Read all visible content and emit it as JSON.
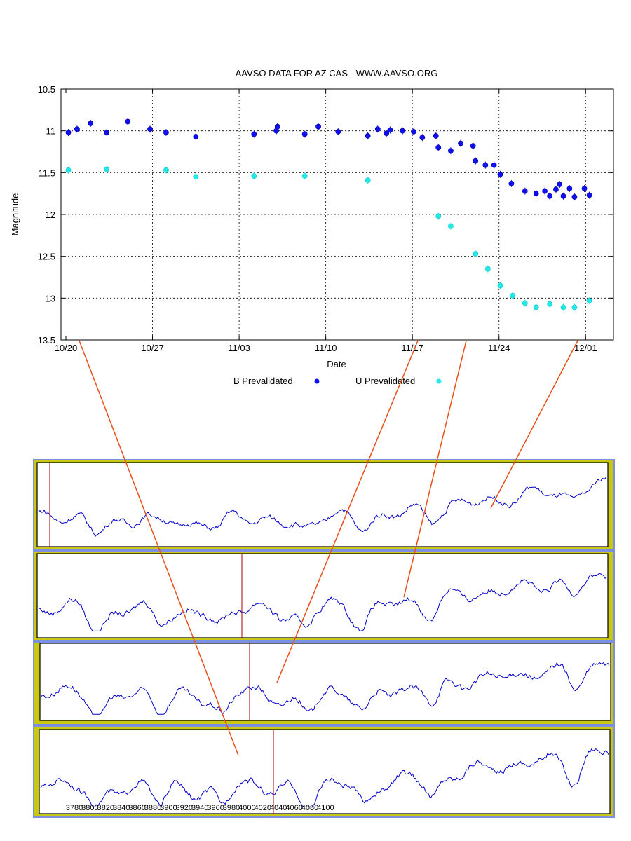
{
  "chart_data": [
    {
      "type": "scatter",
      "title": "AAVSO DATA FOR AZ CAS - WWW.AAVSO.ORG",
      "xlabel": "Date",
      "ylabel": "Magnitude",
      "x_tick_labels": [
        "10/20",
        "10/27",
        "11/03",
        "11/10",
        "11/17",
        "11/24",
        "12/01"
      ],
      "y_tick_labels": [
        "10.5",
        "11",
        "11.5",
        "12",
        "12.5",
        "13",
        "13.5"
      ],
      "ylim": [
        10.5,
        13.5
      ],
      "y_inverted": true,
      "grid": true,
      "legend_position": "bottom",
      "series": [
        {
          "name": "B Prevalidated",
          "color": "#1010ee",
          "points": [
            [
              0.2,
              11.02
            ],
            [
              0.9,
              10.98
            ],
            [
              2.0,
              10.91
            ],
            [
              3.3,
              11.02
            ],
            [
              5.0,
              10.89
            ],
            [
              6.8,
              10.98
            ],
            [
              8.1,
              11.02
            ],
            [
              10.5,
              11.07
            ],
            [
              15.2,
              11.04
            ],
            [
              17.0,
              11.0
            ],
            [
              17.1,
              10.95
            ],
            [
              19.3,
              11.04
            ],
            [
              20.4,
              10.95
            ],
            [
              22.0,
              11.01
            ],
            [
              24.4,
              11.06
            ],
            [
              25.2,
              10.98
            ],
            [
              25.9,
              11.03
            ],
            [
              26.2,
              10.99
            ],
            [
              27.2,
              11.0
            ],
            [
              28.1,
              11.01
            ],
            [
              28.8,
              11.08
            ],
            [
              29.9,
              11.06
            ],
            [
              30.1,
              11.2
            ],
            [
              31.1,
              11.24
            ],
            [
              31.9,
              11.15
            ],
            [
              32.9,
              11.18
            ],
            [
              33.1,
              11.36
            ],
            [
              33.9,
              11.41
            ],
            [
              34.6,
              11.41
            ],
            [
              35.1,
              11.52
            ],
            [
              36.0,
              11.63
            ],
            [
              37.1,
              11.72
            ],
            [
              38.0,
              11.75
            ],
            [
              38.7,
              11.72
            ],
            [
              39.1,
              11.78
            ],
            [
              39.6,
              11.7
            ],
            [
              39.9,
              11.64
            ],
            [
              40.2,
              11.78
            ],
            [
              40.7,
              11.69
            ],
            [
              41.1,
              11.79
            ],
            [
              41.9,
              11.69
            ],
            [
              42.3,
              11.77
            ]
          ]
        },
        {
          "name": "U Prevalidated",
          "color": "#22e8e8",
          "points": [
            [
              0.2,
              11.47
            ],
            [
              3.3,
              11.46
            ],
            [
              8.1,
              11.47
            ],
            [
              10.5,
              11.55
            ],
            [
              15.2,
              11.54
            ],
            [
              19.3,
              11.54
            ],
            [
              24.4,
              11.59
            ],
            [
              30.1,
              12.02
            ],
            [
              31.1,
              12.14
            ],
            [
              33.1,
              12.47
            ],
            [
              34.1,
              12.65
            ],
            [
              35.1,
              12.85
            ],
            [
              36.1,
              12.97
            ],
            [
              37.1,
              13.06
            ],
            [
              38.0,
              13.11
            ],
            [
              39.1,
              13.07
            ],
            [
              40.2,
              13.11
            ],
            [
              41.1,
              13.11
            ],
            [
              42.3,
              13.03
            ]
          ]
        }
      ]
    },
    {
      "type": "line",
      "panels": 4,
      "x_tick_labels": [
        "3780",
        "3800",
        "3820",
        "3840",
        "3860",
        "3880",
        "3900",
        "3920",
        "3940",
        "3960",
        "3980",
        "4000",
        "4020",
        "4040",
        "4060",
        "4080",
        "4100"
      ],
      "line_color": "#0000cc",
      "marker_color": "#aa0000",
      "frame_color": "#c8c814",
      "connector_color": "#e8501a"
    }
  ]
}
